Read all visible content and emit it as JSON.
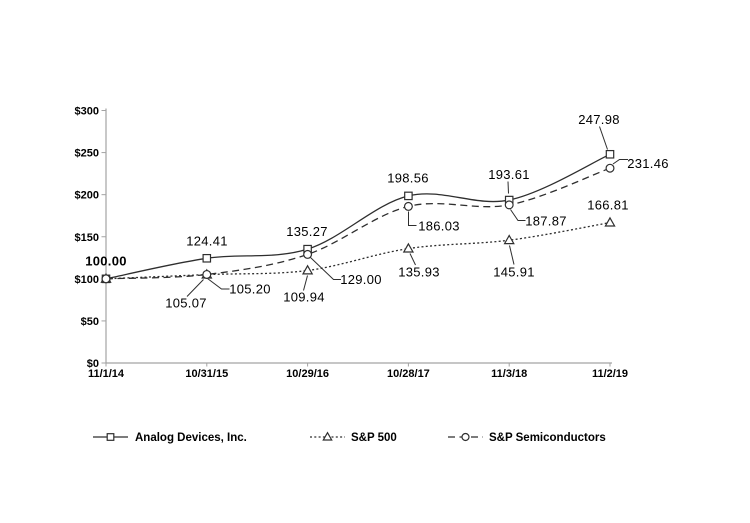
{
  "chart_data": {
    "type": "line",
    "title": "",
    "categories": [
      "11/1/14",
      "10/31/15",
      "10/29/16",
      "10/28/17",
      "11/3/18",
      "11/2/19"
    ],
    "y_axis": {
      "tick_labels": [
        "$0",
        "$50",
        "$100",
        "$150",
        "$200",
        "$250",
        "$300"
      ],
      "min": 0,
      "max": 300,
      "step": 50,
      "prefix": "$"
    },
    "grid": false,
    "legend_position": "bottom",
    "series": [
      {
        "name": "Analog Devices, Inc.",
        "marker": "square",
        "line_style": "solid",
        "values": [
          100.0,
          124.41,
          135.27,
          198.56,
          193.61,
          247.98
        ],
        "point_labels": [
          "100.00",
          "124.41",
          "135.27",
          "198.56",
          "193.61",
          "247.98"
        ]
      },
      {
        "name": "S&P 500",
        "marker": "triangle",
        "line_style": "dotted",
        "values": [
          100.0,
          105.07,
          109.94,
          135.93,
          145.91,
          166.81
        ],
        "point_labels": [
          "",
          "105.07",
          "109.94",
          "135.93",
          "145.91",
          "166.81"
        ]
      },
      {
        "name": "S&P Semiconductors",
        "marker": "circle",
        "line_style": "dashed",
        "values": [
          100.0,
          105.2,
          129.0,
          186.03,
          187.87,
          231.46
        ],
        "point_labels": [
          "",
          "105.20",
          "129.00",
          "186.03",
          "187.87",
          "231.46"
        ]
      }
    ],
    "colors": {
      "series_line": "#2e2e2e",
      "axis_line": "#a3a3a3",
      "text": "#000000",
      "marker_fill": "#ffffff",
      "background": "#ffffff"
    }
  }
}
